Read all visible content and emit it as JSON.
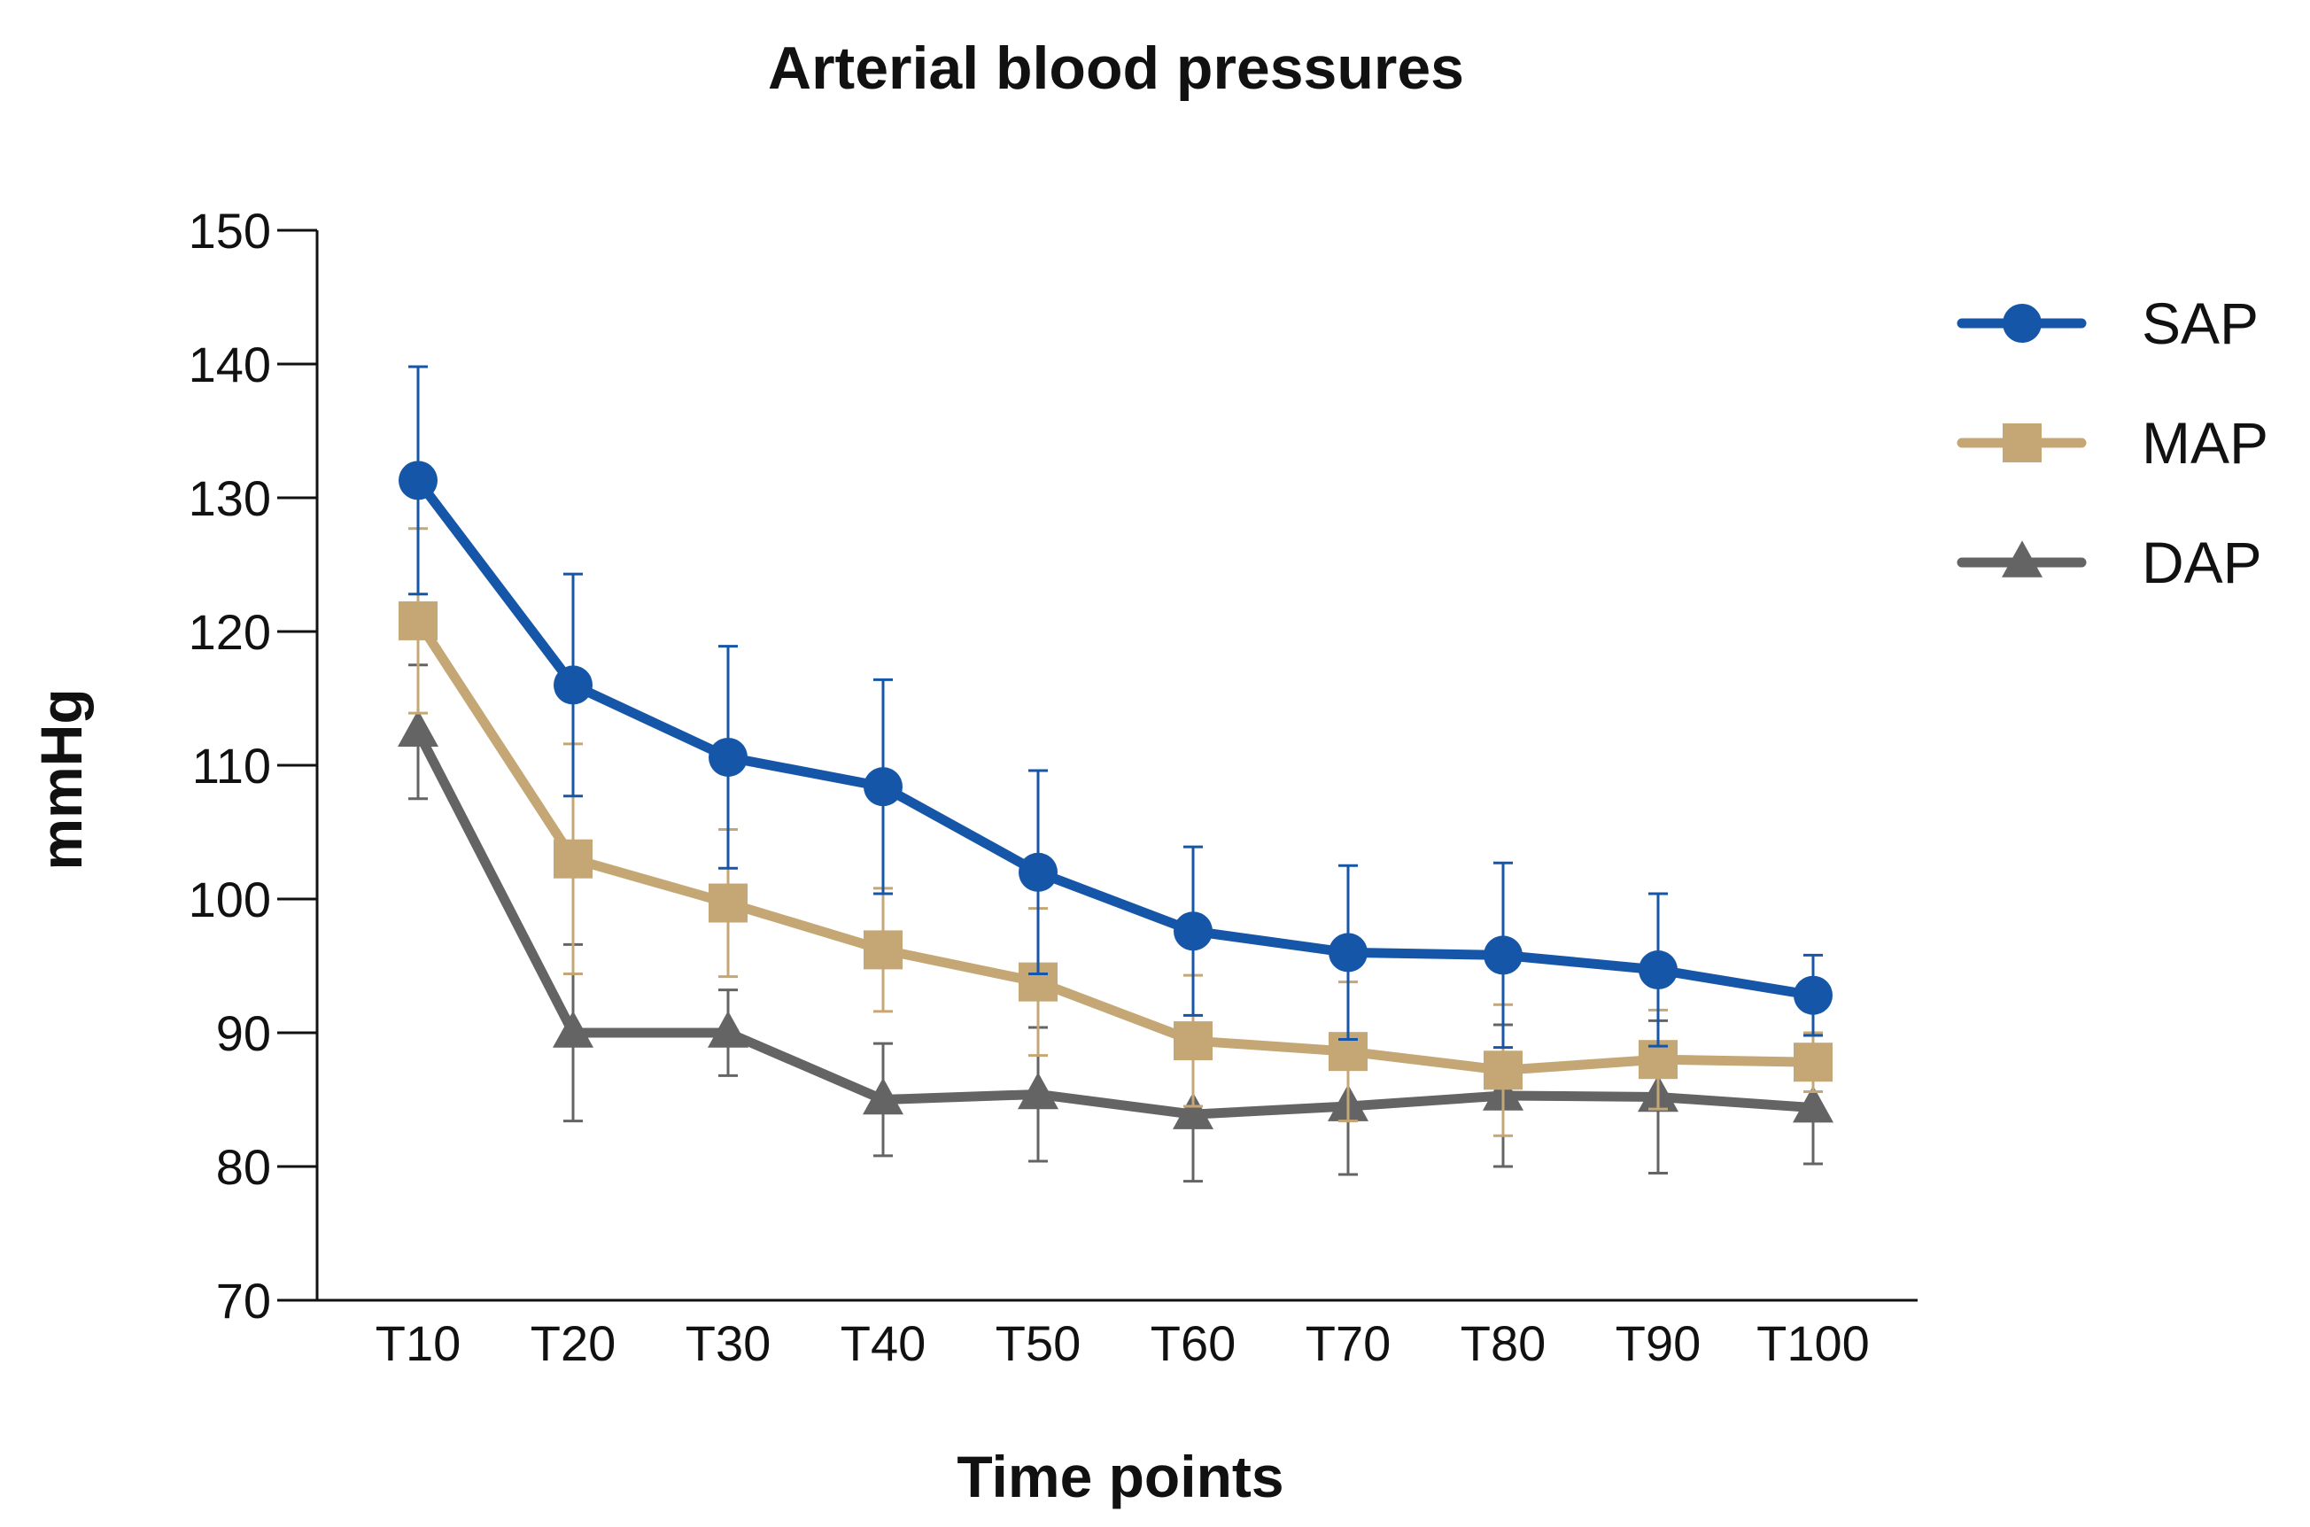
{
  "chart_data": {
    "type": "line",
    "title": "Arterial blood pressures",
    "xlabel": "Time points",
    "ylabel": "mmHg",
    "ylim": [
      70,
      150
    ],
    "yticks": [
      70,
      80,
      90,
      100,
      110,
      120,
      130,
      140,
      150
    ],
    "grid": false,
    "legend_position": "top-right",
    "categories": [
      "T10",
      "T20",
      "T30",
      "T40",
      "T50",
      "T60",
      "T70",
      "T80",
      "T90",
      "T100"
    ],
    "series": [
      {
        "name": "SAP",
        "marker": "circle",
        "color": "#1656A8",
        "values": [
          131.3,
          116.0,
          110.6,
          108.4,
          102.0,
          97.6,
          96.0,
          95.8,
          94.7,
          92.8
        ],
        "error": [
          8.5,
          8.3,
          8.3,
          8.0,
          7.6,
          6.3,
          6.5,
          6.9,
          5.7,
          3.0
        ]
      },
      {
        "name": "MAP",
        "marker": "square",
        "color": "#C4A775",
        "values": [
          120.8,
          103.0,
          99.7,
          96.2,
          93.8,
          89.4,
          88.6,
          87.2,
          88.0,
          87.8
        ],
        "error": [
          6.9,
          8.6,
          5.5,
          4.6,
          5.5,
          4.9,
          5.2,
          4.9,
          3.7,
          2.2
        ]
      },
      {
        "name": "DAP",
        "marker": "triangle",
        "color": "#646464",
        "values": [
          112.5,
          90.0,
          90.0,
          85.0,
          85.4,
          83.9,
          84.5,
          85.3,
          85.2,
          84.4
        ],
        "error": [
          5.0,
          6.6,
          3.2,
          4.2,
          5.0,
          5.0,
          5.1,
          5.3,
          5.7,
          4.2
        ]
      }
    ]
  }
}
